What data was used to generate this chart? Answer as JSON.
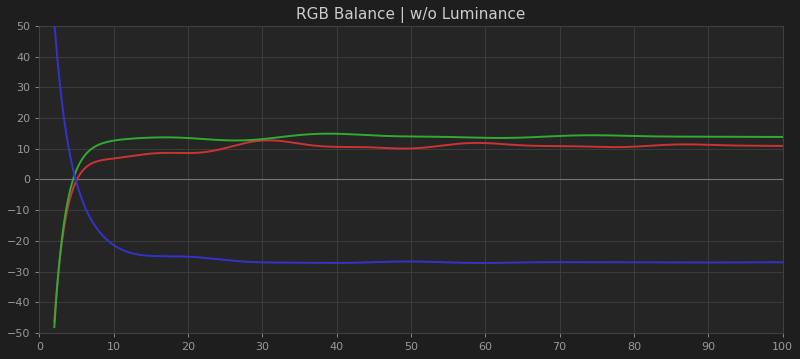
{
  "title": "RGB Balance | w/o Luminance",
  "bg_color": "#1e1e1e",
  "plot_bg_color": "#252525",
  "grid_color": "#404040",
  "title_color": "#cccccc",
  "tick_color": "#999999",
  "zero_line_color": "#777777",
  "xlim": [
    0,
    100
  ],
  "ylim": [
    -50,
    50
  ],
  "xticks": [
    0,
    10,
    20,
    30,
    40,
    50,
    60,
    70,
    80,
    90,
    100
  ],
  "yticks": [
    -50,
    -40,
    -30,
    -20,
    -10,
    0,
    10,
    20,
    30,
    40,
    50
  ],
  "red_color": "#cc3333",
  "green_color": "#33aa33",
  "blue_color": "#3333cc",
  "line_width": 1.4
}
